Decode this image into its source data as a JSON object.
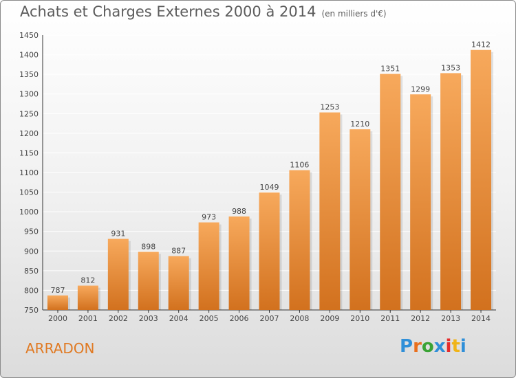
{
  "header": {
    "title": "Achats et Charges Externes 2000 à 2014",
    "unit": "(en milliers d'€)"
  },
  "footer": {
    "commune": "ARRADON",
    "logo": "Proxiti"
  },
  "colors": {
    "bar_light": "#f7a95c",
    "bar_dark": "#d2711e",
    "commune_text": "#e07a23",
    "grid": "#ffffff",
    "logo_letters": [
      "#2f8fd8",
      "#e96f1d",
      "#3aa335",
      "#2f8fd8",
      "#e52b2b",
      "#f0b418",
      "#2f8fd8"
    ]
  },
  "chart_data": {
    "type": "bar",
    "title": "Achats et Charges Externes 2000 à 2014",
    "categories": [
      "2000",
      "2001",
      "2002",
      "2003",
      "2004",
      "2005",
      "2006",
      "2007",
      "2008",
      "2009",
      "2010",
      "2011",
      "2012",
      "2013",
      "2014"
    ],
    "values": [
      787,
      812,
      931,
      898,
      887,
      973,
      988,
      1049,
      1106,
      1253,
      1210,
      1351,
      1299,
      1353,
      1412
    ],
    "ylim": [
      750,
      1450
    ],
    "yticks": [
      750,
      800,
      850,
      900,
      950,
      1000,
      1050,
      1100,
      1150,
      1200,
      1250,
      1300,
      1350,
      1400,
      1450
    ],
    "grid": true,
    "data_labels": true
  }
}
